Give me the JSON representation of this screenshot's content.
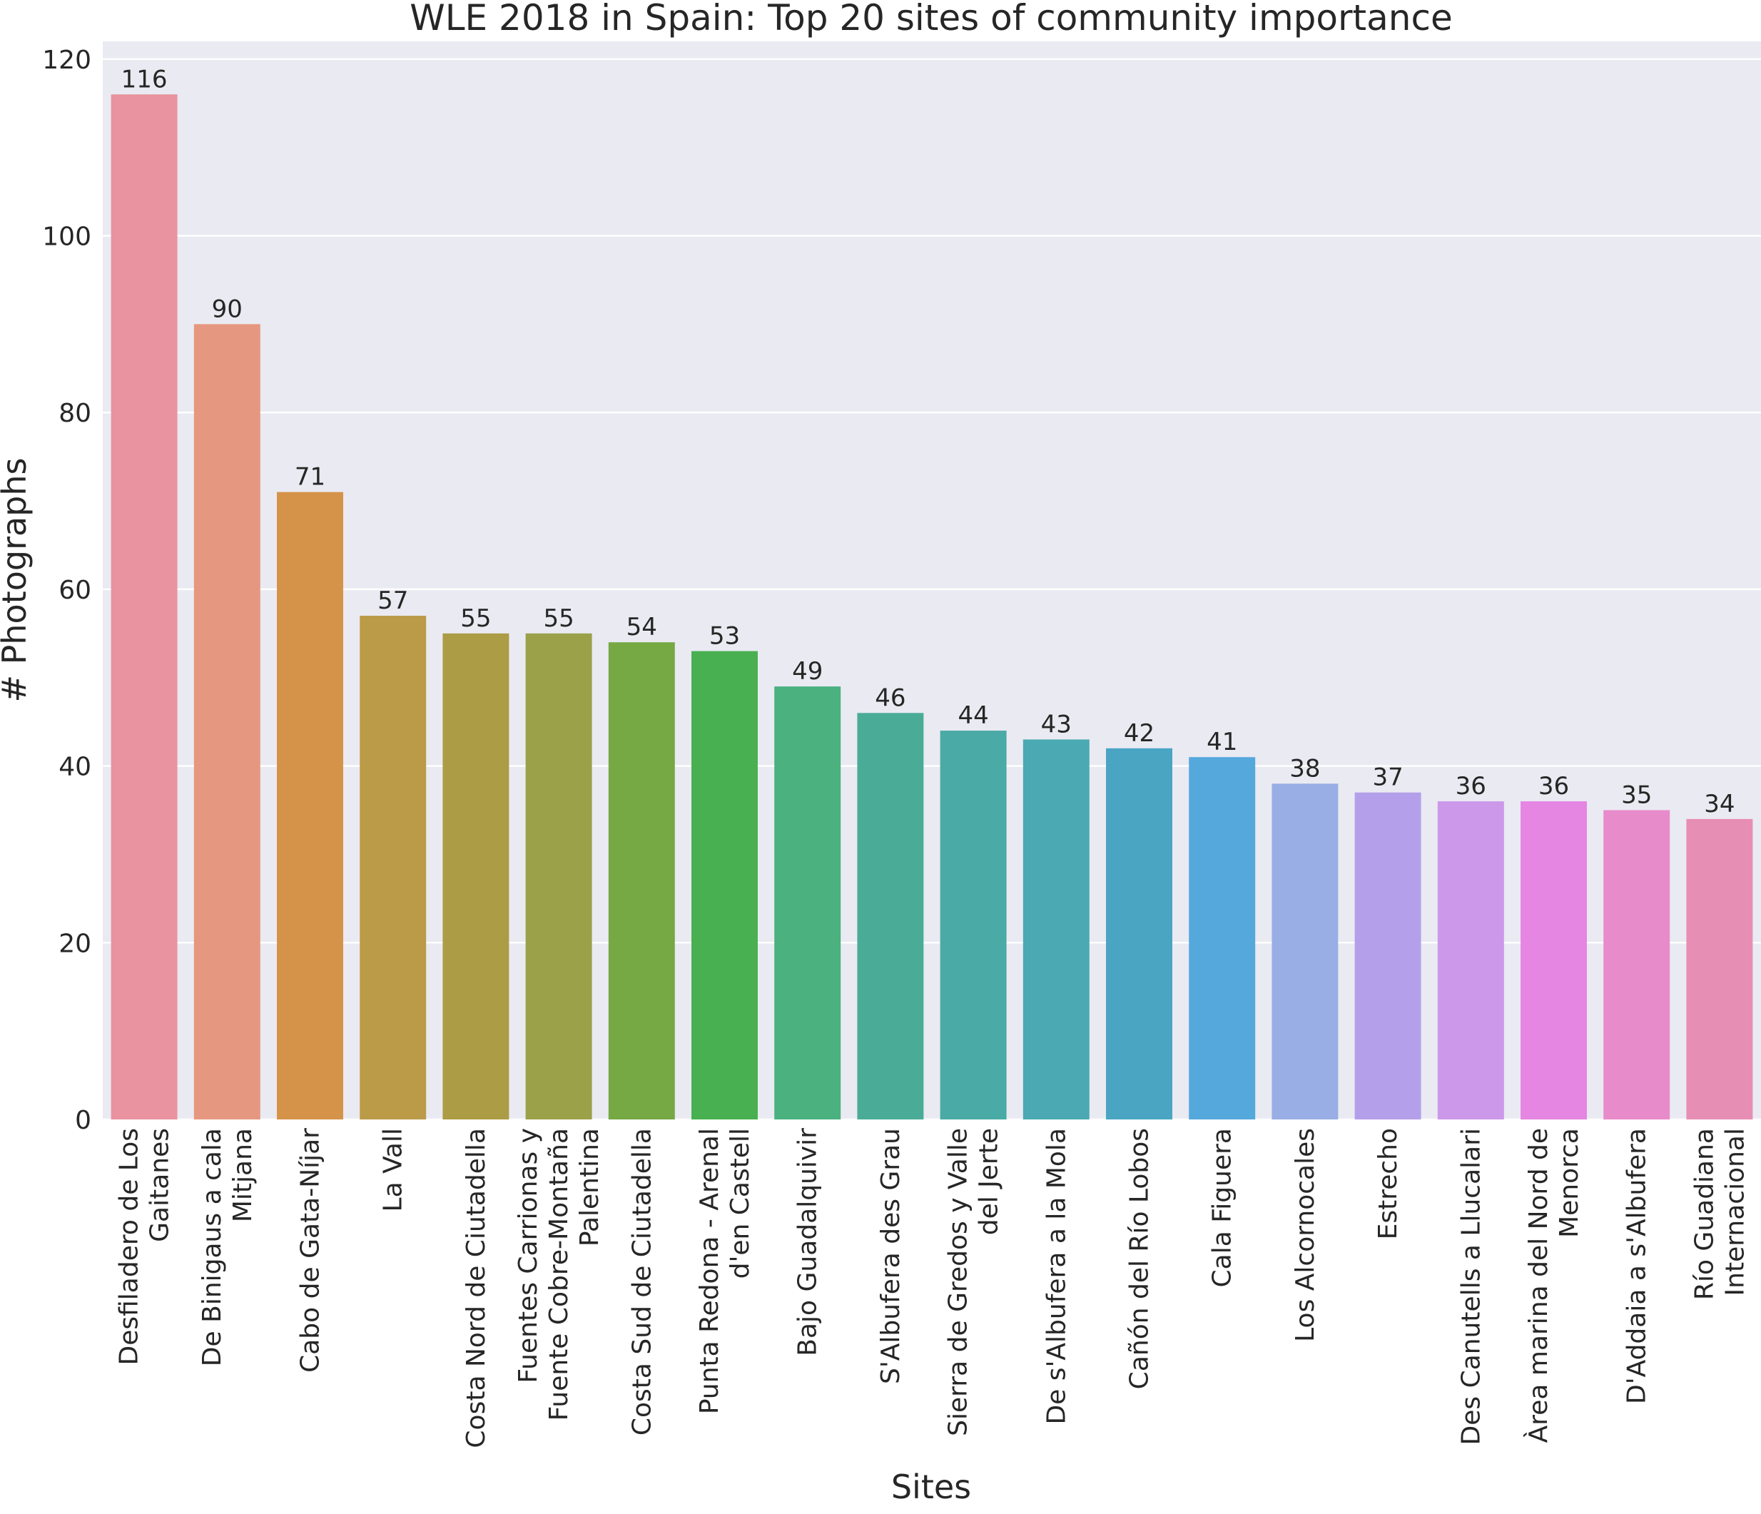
{
  "chart_data": {
    "type": "bar",
    "title": "WLE 2018 in Spain: Top 20 sites of community importance",
    "xlabel": "Sites",
    "ylabel": "# Photographs",
    "ylim": [
      0,
      122
    ],
    "yticks": [
      0,
      20,
      40,
      60,
      80,
      100,
      120
    ],
    "grid": true,
    "categories": [
      [
        "Desfiladero de Los",
        "Gaitanes"
      ],
      [
        "De Binigaus a cala",
        "Mitjana"
      ],
      [
        "Cabo de Gata-Níjar"
      ],
      [
        "La Vall"
      ],
      [
        "Costa Nord de Ciutadella"
      ],
      [
        "Fuentes Carrionas y",
        "Fuente Cobre-Montaña",
        "Palentina"
      ],
      [
        "Costa Sud de Ciutadella"
      ],
      [
        "Punta Redona - Arenal",
        "d'en Castell"
      ],
      [
        "Bajo Guadalquivir"
      ],
      [
        "S'Albufera des Grau"
      ],
      [
        "Sierra de Gredos y Valle",
        "del Jerte"
      ],
      [
        "De s'Albufera a la Mola"
      ],
      [
        "Cañón del Río Lobos"
      ],
      [
        "Cala Figuera"
      ],
      [
        "Los Alcornocales"
      ],
      [
        "Estrecho"
      ],
      [
        "Des Canutells a Llucalari"
      ],
      [
        "Àrea marina del Nord de",
        "Menorca"
      ],
      [
        "D'Addaia a s'Albufera"
      ],
      [
        "Río Guadiana",
        "Internacional"
      ]
    ],
    "values": [
      116,
      90,
      71,
      57,
      55,
      55,
      54,
      53,
      49,
      46,
      44,
      43,
      42,
      41,
      38,
      37,
      36,
      36,
      35,
      34
    ],
    "colors": [
      "#e8939f",
      "#e6977f",
      "#d59349",
      "#bb9a48",
      "#ab9c45",
      "#9aa148",
      "#76a844",
      "#48b050",
      "#4ab17f",
      "#4aac97",
      "#4aaaa5",
      "#4aa9b3",
      "#4aa5c3",
      "#55a8dc",
      "#98aee5",
      "#b4a0ea",
      "#cc98e9",
      "#e486e2",
      "#e88bca",
      "#e78eb4"
    ]
  }
}
